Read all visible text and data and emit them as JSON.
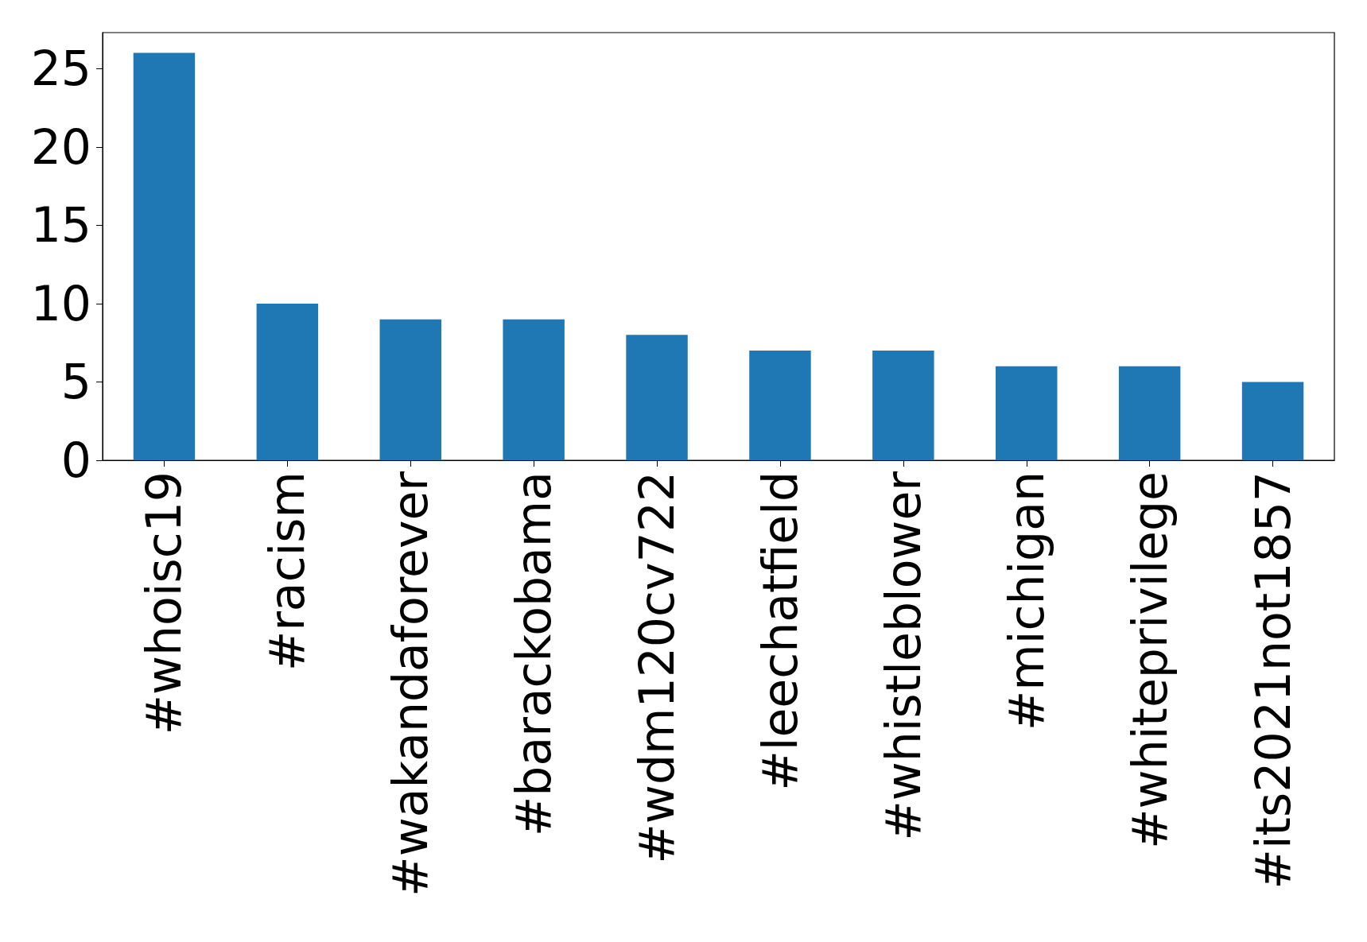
{
  "chart_data": {
    "type": "bar",
    "categories": [
      "#whoisc19",
      "#racism",
      "#wakandaforever",
      "#barackobama",
      "#wdm120cv722",
      "#leechatfield",
      "#whistleblower",
      "#michigan",
      "#whiteprivilege",
      "#its2021not1857"
    ],
    "values": [
      26,
      10,
      9,
      9,
      8,
      7,
      7,
      6,
      6,
      5
    ],
    "color": "#1f77b4",
    "ylim": [
      0,
      27.3
    ],
    "yticks": [
      0,
      5,
      10,
      15,
      20,
      25
    ],
    "grid": false
  }
}
